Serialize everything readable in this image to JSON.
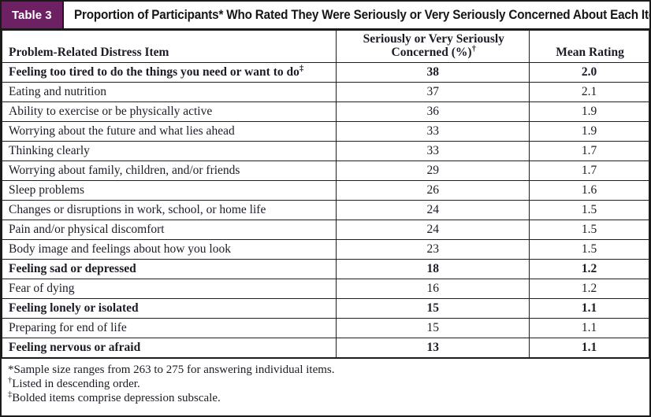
{
  "header": {
    "badge_label": "Table 3",
    "title": "Proportion of Participants* Who Rated They Were Seriously or Very Seriously Concerned About Each Item"
  },
  "columns": {
    "item_header": "Problem-Related Distress Item",
    "concerned_header_line1": "Seriously or Very Seriously",
    "concerned_header_line2": "Concerned (%)",
    "concerned_header_sup": "†",
    "mean_header": "Mean Rating"
  },
  "rows": [
    {
      "item": "Feeling too tired to do the things you need or want to do",
      "sup": "‡",
      "percent": "38",
      "mean": "2.0",
      "bold": true
    },
    {
      "item": "Eating and nutrition",
      "sup": "",
      "percent": "37",
      "mean": "2.1",
      "bold": false
    },
    {
      "item": "Ability to exercise or be physically active",
      "sup": "",
      "percent": "36",
      "mean": "1.9",
      "bold": false
    },
    {
      "item": "Worrying about the future and what lies ahead",
      "sup": "",
      "percent": "33",
      "mean": "1.9",
      "bold": false
    },
    {
      "item": "Thinking clearly",
      "sup": "",
      "percent": "33",
      "mean": "1.7",
      "bold": false
    },
    {
      "item": "Worrying about family, children, and/or friends",
      "sup": "",
      "percent": "29",
      "mean": "1.7",
      "bold": false
    },
    {
      "item": "Sleep problems",
      "sup": "",
      "percent": "26",
      "mean": "1.6",
      "bold": false
    },
    {
      "item": "Changes or disruptions in work, school, or home life",
      "sup": "",
      "percent": "24",
      "mean": "1.5",
      "bold": false
    },
    {
      "item": "Pain and/or physical discomfort",
      "sup": "",
      "percent": "24",
      "mean": "1.5",
      "bold": false
    },
    {
      "item": "Body image and feelings about how you look",
      "sup": "",
      "percent": "23",
      "mean": "1.5",
      "bold": false
    },
    {
      "item": "Feeling sad or depressed",
      "sup": "",
      "percent": "18",
      "mean": "1.2",
      "bold": true
    },
    {
      "item": "Fear of dying",
      "sup": "",
      "percent": "16",
      "mean": "1.2",
      "bold": false
    },
    {
      "item": "Feeling lonely or isolated",
      "sup": "",
      "percent": "15",
      "mean": "1.1",
      "bold": true
    },
    {
      "item": "Preparing for end of life",
      "sup": "",
      "percent": "15",
      "mean": "1.1",
      "bold": false
    },
    {
      "item": "Feeling nervous or afraid",
      "sup": "",
      "percent": "13",
      "mean": "1.1",
      "bold": true
    }
  ],
  "footnotes": [
    {
      "marker": "*",
      "superscript": false,
      "text": "Sample size ranges from 263 to 275 for answering individual items."
    },
    {
      "marker": "†",
      "superscript": true,
      "text": "Listed in descending order."
    },
    {
      "marker": "‡",
      "superscript": true,
      "text": "Bolded items comprise depression subscale."
    }
  ],
  "colors": {
    "badge_background": "#6d2163",
    "shaded_row_background": "#efefec",
    "border": "#1a1a1a",
    "text": "#1c1c26"
  }
}
